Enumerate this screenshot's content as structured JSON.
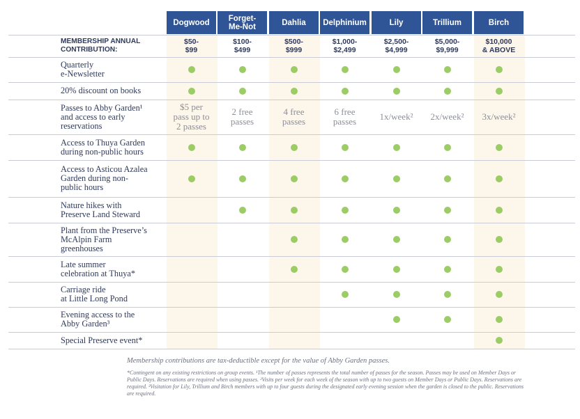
{
  "levels": [
    "Dogwood",
    "Forget-\nMe-Not",
    "Dahlia",
    "Delphinium",
    "Lily",
    "Trillium",
    "Birch"
  ],
  "contribution_label": "MEMBERSHIP ANNUAL\nCONTRIBUTION:",
  "contribution_values": [
    "$50-\n$99",
    "$100-\n$499",
    "$500-\n$999",
    "$1,000-\n$2,499",
    "$2,500-\n$4,999",
    "$5,000-\n$9,999",
    "$10,000\n& ABOVE"
  ],
  "colors": {
    "header": "#2f5597",
    "dot": "#9ccc65",
    "band": "#fdf6ea"
  },
  "rows": [
    {
      "label": "Quarterly\ne-Newsletter",
      "cells": [
        true,
        true,
        true,
        true,
        true,
        true,
        true
      ]
    },
    {
      "label": "20% discount on books",
      "cells": [
        true,
        true,
        true,
        true,
        true,
        true,
        true
      ]
    },
    {
      "label": "Passes to Abby Garden¹\nand access to early\nreservations",
      "cells": [
        "$5 per\npass up to\n2 passes",
        "2 free\npasses",
        "4 free\npasses",
        "6 free\npasses",
        "1x/week²",
        "2x/week²",
        "3x/week²"
      ]
    },
    {
      "label": "Access to Thuya Garden\nduring non-public hours",
      "cells": [
        true,
        true,
        true,
        true,
        true,
        true,
        true
      ]
    },
    {
      "label": "Access to Asticou Azalea\nGarden during non-\npublic hours",
      "cells": [
        true,
        true,
        true,
        true,
        true,
        true,
        true
      ]
    },
    {
      "label": "Nature hikes with\nPreserve Land Steward",
      "cells": [
        false,
        true,
        true,
        true,
        true,
        true,
        true
      ]
    },
    {
      "label": "Plant from the Preserve’s\nMcAlpin Farm\ngreenhouses",
      "cells": [
        false,
        false,
        true,
        true,
        true,
        true,
        true
      ]
    },
    {
      "label": "Late summer\ncelebration at Thuya*",
      "cells": [
        false,
        false,
        true,
        true,
        true,
        true,
        true
      ]
    },
    {
      "label": "Carriage ride\nat Little Long Pond",
      "cells": [
        false,
        false,
        false,
        true,
        true,
        true,
        true
      ]
    },
    {
      "label": "Evening access to the\nAbby Garden³",
      "cells": [
        false,
        false,
        false,
        false,
        true,
        true,
        true
      ]
    },
    {
      "label": "Special Preserve event*",
      "cells": [
        false,
        false,
        false,
        false,
        false,
        false,
        true
      ]
    }
  ],
  "footnote_main": "Membership contributions are tax-deductible except for the value of Abby Garden passes.",
  "footnote_small": "*Contingent on any existing restrictions on group events. ¹The number of passes represents the total number of passes for the season. Passes may be used on Member Days or Public Days. Reservations are required when using passes. ²Visits per week for each week of the season with up to two guests on Member Days or Public Days. Reservations are required. ³Visitation for Lily, Trillium and Birch members with up to four guests during the designated early evening session when the garden is closed to the public. Reservations are required."
}
